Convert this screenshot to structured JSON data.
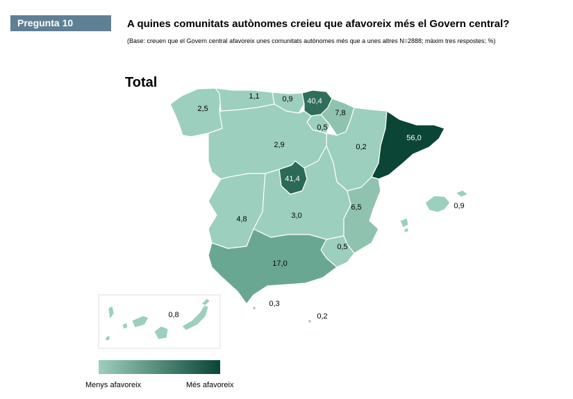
{
  "header": {
    "badge": "Pregunta 10",
    "title": "A quines comunitats autònomes creieu que afavoreix més el Govern central?",
    "subtitle": "(Base: creuen que el Govern central afavoreix unes comunitats autònomes més que a unes altres N=2888; màxim tres respostes; %)"
  },
  "map": {
    "title": "Total",
    "regions": [
      {
        "name": "Galícia",
        "value": "2,5",
        "color": "#9ccfbd"
      },
      {
        "name": "Astúries",
        "value": "1,1",
        "color": "#9ccfbd"
      },
      {
        "name": "Cantàbria",
        "value": "0,9",
        "color": "#9ccfbd"
      },
      {
        "name": "País Basc",
        "value": "40,4",
        "color": "#2e6e5a"
      },
      {
        "name": "Navarra",
        "value": "7,8",
        "color": "#8fc3b0"
      },
      {
        "name": "La Rioja",
        "value": "0,5",
        "color": "#9ccfbd"
      },
      {
        "name": "Aragó",
        "value": "0,2",
        "color": "#9ccfbd"
      },
      {
        "name": "Catalunya",
        "value": "56,0",
        "color": "#0b4536"
      },
      {
        "name": "Castella i Lleó",
        "value": "2,9",
        "color": "#9ccfbd"
      },
      {
        "name": "Madrid",
        "value": "41,4",
        "color": "#2a6a56"
      },
      {
        "name": "Extremadura",
        "value": "4,8",
        "color": "#9ccfbd"
      },
      {
        "name": "Castella-la Manxa",
        "value": "3,0",
        "color": "#9ccfbd"
      },
      {
        "name": "País Valencià",
        "value": "6,5",
        "color": "#8fc3b0"
      },
      {
        "name": "Múrcia",
        "value": "0,5",
        "color": "#9ccfbd"
      },
      {
        "name": "Andalusia",
        "value": "17,0",
        "color": "#6aa793"
      },
      {
        "name": "Illes Balears",
        "value": "0,9",
        "color": "#9ccfbd"
      },
      {
        "name": "Ceuta",
        "value": "0,3",
        "color": "#9ccfbd"
      },
      {
        "name": "Melilla",
        "value": "0,2",
        "color": "#9ccfbd"
      },
      {
        "name": "Canàries",
        "value": "0,8",
        "color": "#9ccfbd"
      }
    ]
  },
  "legend": {
    "low": "Menys afavoreix",
    "high": "Més afavoreix",
    "color_low": "#9ccfbd",
    "color_high": "#0b4536"
  }
}
